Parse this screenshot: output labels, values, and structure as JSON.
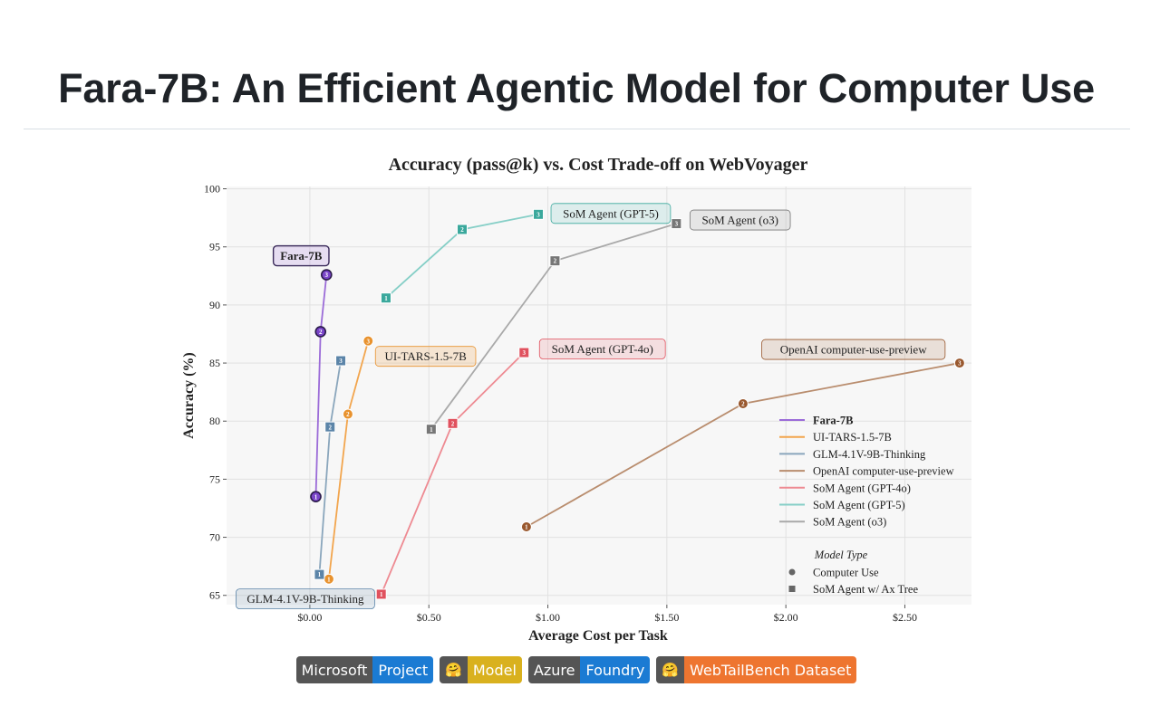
{
  "page": {
    "title": "Fara-7B: An Efficient Agentic Model for Computer Use"
  },
  "chart_data": {
    "type": "line",
    "title": "Accuracy (pass@k) vs. Cost Trade-off on WebVoyager",
    "xlabel": "Average Cost per Task",
    "ylabel": "Accuracy (%)",
    "xlim": [
      -0.35,
      2.78
    ],
    "ylim": [
      64.2,
      100.2
    ],
    "xticks": [
      0,
      0.5,
      1,
      1.5,
      2,
      2.5
    ],
    "xtick_labels": [
      "$0.00",
      "$0.50",
      "$1.00",
      "$1.50",
      "$2.00",
      "$2.50"
    ],
    "yticks": [
      65,
      70,
      75,
      80,
      85,
      90,
      95,
      100
    ],
    "ytick_labels": [
      "65",
      "70",
      "75",
      "80",
      "85",
      "90",
      "95",
      "100"
    ],
    "grid": true,
    "series": [
      {
        "name": "Fara-7B",
        "color": "#9b6bd8",
        "marker": "circle",
        "marker_color": "#7a45c9",
        "bold": true,
        "label": "Fara-7B",
        "label_point": 3,
        "points": [
          {
            "k": "1",
            "x": 0.025,
            "y": 73.5
          },
          {
            "k": "2",
            "x": 0.045,
            "y": 87.7
          },
          {
            "k": "3",
            "x": 0.07,
            "y": 92.6
          }
        ]
      },
      {
        "name": "UI-TARS-1.5-7B",
        "color": "#f2a54d",
        "marker": "circle",
        "marker_color": "#e8922e",
        "label": "UI-TARS-1.5-7B",
        "label_point": 3,
        "points": [
          {
            "k": "1",
            "x": 0.08,
            "y": 66.4
          },
          {
            "k": "2",
            "x": 0.16,
            "y": 80.6
          },
          {
            "k": "3",
            "x": 0.245,
            "y": 86.9
          }
        ]
      },
      {
        "name": "GLM-4.1V-9B-Thinking",
        "color": "#8aa6bc",
        "marker": "square",
        "marker_color": "#5b84a8",
        "label": "GLM-4.1V-9B-Thinking",
        "label_point": 1,
        "points": [
          {
            "k": "1",
            "x": 0.04,
            "y": 66.8
          },
          {
            "k": "2",
            "x": 0.085,
            "y": 79.5
          },
          {
            "k": "3",
            "x": 0.13,
            "y": 85.2
          }
        ]
      },
      {
        "name": "OpenAI computer-use-preview",
        "color": "#b98d6e",
        "marker": "circle",
        "marker_color": "#99582e",
        "label": "OpenAI computer-use-preview",
        "label_point": 3,
        "points": [
          {
            "k": "1",
            "x": 0.91,
            "y": 70.9
          },
          {
            "k": "2",
            "x": 1.82,
            "y": 81.5
          },
          {
            "k": "3",
            "x": 2.73,
            "y": 85.0
          }
        ]
      },
      {
        "name": "SoM Agent (GPT-4o)",
        "color": "#ee8a92",
        "marker": "square",
        "marker_color": "#e0515e",
        "label": "SoM Agent (GPT-4o)",
        "label_point": 3,
        "points": [
          {
            "k": "1",
            "x": 0.3,
            "y": 65.1
          },
          {
            "k": "2",
            "x": 0.6,
            "y": 79.8
          },
          {
            "k": "3",
            "x": 0.9,
            "y": 85.9
          }
        ]
      },
      {
        "name": "SoM Agent (GPT-5)",
        "color": "#86cfc7",
        "marker": "square",
        "marker_color": "#3aa89c",
        "label": "SoM Agent (GPT-5)",
        "label_point": 3,
        "points": [
          {
            "k": "1",
            "x": 0.32,
            "y": 90.6
          },
          {
            "k": "2",
            "x": 0.64,
            "y": 96.5
          },
          {
            "k": "3",
            "x": 0.96,
            "y": 97.8
          }
        ]
      },
      {
        "name": "SoM Agent (o3)",
        "color": "#a9a9a9",
        "marker": "square",
        "marker_color": "#777777",
        "label": "SoM Agent (o3)",
        "label_point": 3,
        "points": [
          {
            "k": "1",
            "x": 0.51,
            "y": 79.3
          },
          {
            "k": "2",
            "x": 1.03,
            "y": 93.8
          },
          {
            "k": "3",
            "x": 1.54,
            "y": 97.0
          }
        ]
      }
    ],
    "legend": {
      "placement": "lower-right",
      "subtitle": "Model Type",
      "marker_types": [
        {
          "marker": "circle",
          "label": "Computer Use"
        },
        {
          "marker": "square",
          "label": "SoM Agent w/ Ax Tree"
        }
      ]
    }
  },
  "badges": [
    {
      "left": "Microsoft",
      "right": "Project",
      "color": "#1b7bd3",
      "icon": ""
    },
    {
      "left": "🤗",
      "right": "Model",
      "color": "#d9b11e",
      "icon": "hugging-face-icon"
    },
    {
      "left": "Azure",
      "right": "Foundry",
      "color": "#1b7bd3",
      "icon": ""
    },
    {
      "left": "🤗",
      "right": "WebTailBench Dataset",
      "color": "#ee7530",
      "icon": "hugging-face-icon"
    }
  ]
}
